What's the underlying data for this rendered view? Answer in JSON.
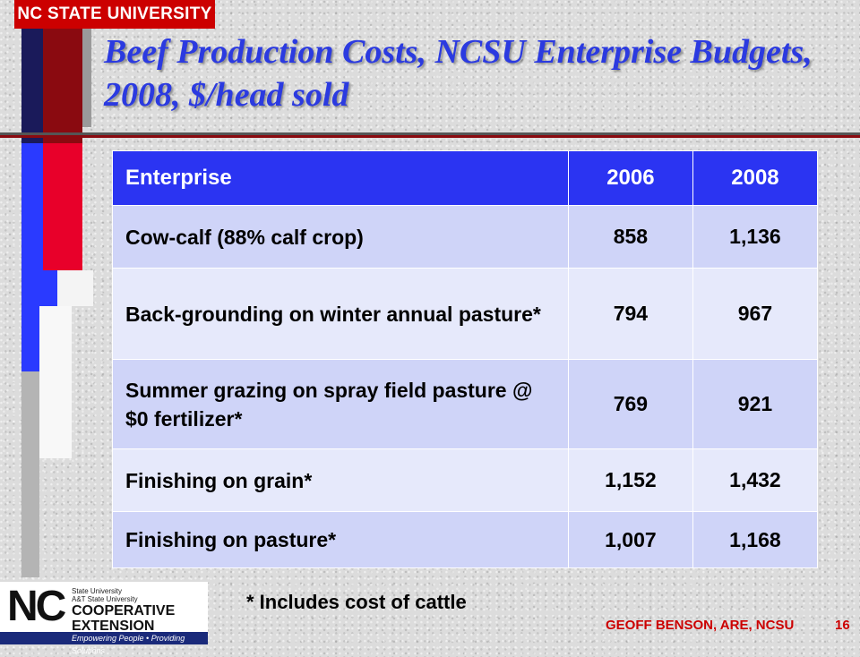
{
  "header": {
    "university": "NC STATE UNIVERSITY",
    "title": "Beef Production Costs, NCSU Enterprise Budgets, 2008, $/head sold"
  },
  "table": {
    "columns": [
      "Enterprise",
      "2006",
      "2008"
    ],
    "rows": [
      {
        "enterprise": "Cow-calf (88% calf crop)",
        "y2006": "858",
        "y2008": "1,136"
      },
      {
        "enterprise": "Back-grounding on winter annual pasture*",
        "y2006": "794",
        "y2008": "967"
      },
      {
        "enterprise": "Summer grazing on spray field pasture @ $0 fertilizer*",
        "y2006": "769",
        "y2008": "921"
      },
      {
        "enterprise": "Finishing on grain*",
        "y2006": "1,152",
        "y2008": "1,432"
      },
      {
        "enterprise": "Finishing on pasture*",
        "y2006": "1,007",
        "y2008": "1,168"
      }
    ]
  },
  "footnote": "* Includes cost of cattle",
  "footer": {
    "author": "GEOFF BENSON, ARE, NCSU",
    "page": "16"
  },
  "extension_logo": {
    "mark": "NC",
    "small_line1": "State University",
    "small_line2": "A&T State University",
    "line1": "COOPERATIVE",
    "line2": "EXTENSION",
    "tagline": "Empowering People • Providing Solutions"
  },
  "colors": {
    "title": "#2b3ae0",
    "header_row": "#2b34f2",
    "row_odd": "#cfd4f8",
    "row_even": "#e6e9fb",
    "accent_red": "#cc0000"
  }
}
